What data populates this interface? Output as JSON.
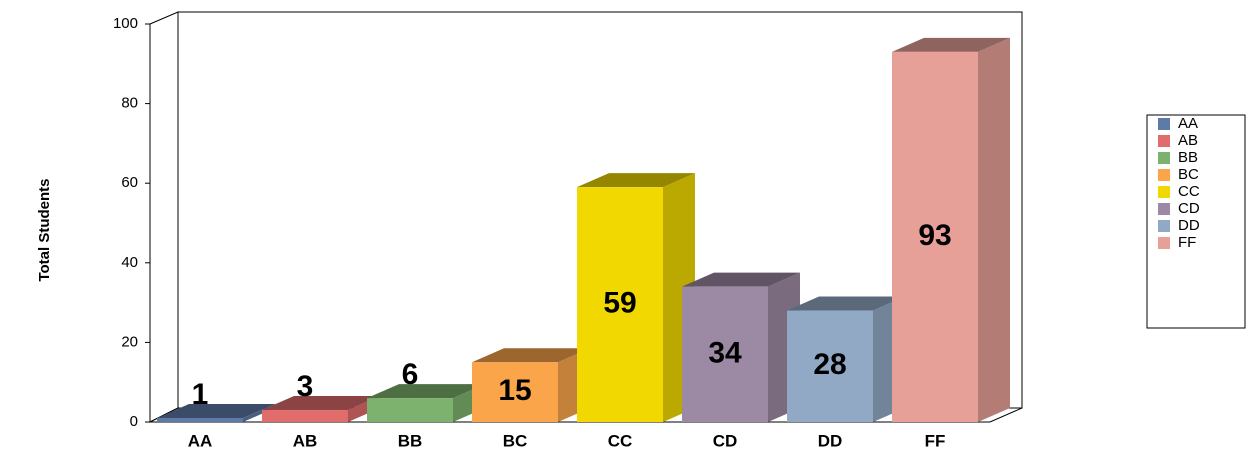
{
  "chart_data": {
    "type": "bar3d",
    "y_label": "Total Students",
    "categories": [
      "AA",
      "AB",
      "BB",
      "BC",
      "CC",
      "CD",
      "DD",
      "FF"
    ],
    "values": [
      1,
      3,
      6,
      15,
      59,
      34,
      28,
      93
    ],
    "colors": [
      "#5d7ba6",
      "#e06c6c",
      "#7db26e",
      "#fba54a",
      "#f0d800",
      "#9c89a3",
      "#92a9c6",
      "#e6a097"
    ],
    "ylim": [
      0,
      100
    ],
    "yticks": [
      0,
      20,
      40,
      60,
      80,
      100
    ],
    "legend": "right"
  }
}
